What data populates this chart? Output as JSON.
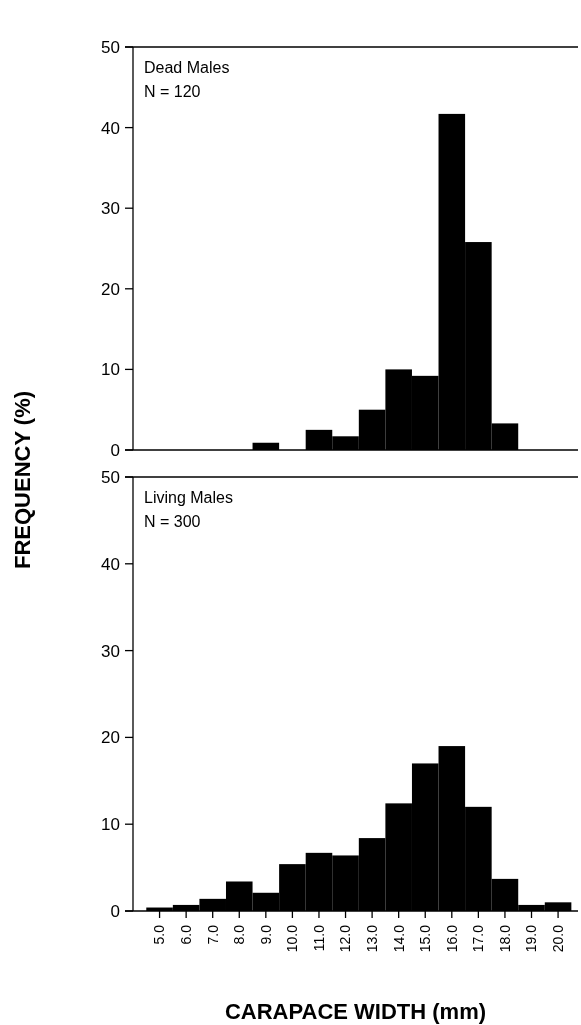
{
  "chart_data": [
    {
      "type": "histogram",
      "annotations": [
        "Dead Males",
        "N = 120"
      ],
      "ylabel": "FREQUENCY (%)",
      "bins": [
        4.5,
        5.5,
        6.5,
        7.5,
        8.5,
        9.5,
        10.5,
        11.5,
        12.5,
        13.5,
        14.5,
        15.5,
        16.5,
        17.5,
        18.5,
        19.5,
        20.5
      ],
      "values": [
        0,
        0,
        0,
        0,
        0.9,
        0,
        2.5,
        1.7,
        5.0,
        10.0,
        9.2,
        41.7,
        25.8,
        3.3,
        0,
        0
      ],
      "color": "#000000",
      "xlim": [
        4,
        20.75
      ],
      "ylim": [
        0,
        50
      ],
      "yticks": [
        0,
        10,
        20,
        30,
        40,
        50
      ],
      "tick_labels": "y"
    },
    {
      "type": "histogram",
      "annotations": [
        "Living Males",
        "N = 300"
      ],
      "xlabel": "CARAPACE WIDTH (mm)",
      "bins": [
        4.5,
        5.5,
        6.5,
        7.5,
        8.5,
        9.5,
        10.5,
        11.5,
        12.5,
        13.5,
        14.5,
        15.5,
        16.5,
        17.5,
        18.5,
        19.5,
        20.5
      ],
      "values": [
        0.4,
        0.7,
        1.4,
        3.4,
        2.1,
        5.4,
        6.7,
        6.4,
        8.4,
        12.4,
        17.0,
        19.0,
        12.0,
        3.7,
        0.7,
        1.0
      ],
      "color": "#000000",
      "xlim": [
        4,
        20.75
      ],
      "ylim": [
        0,
        50
      ],
      "yticks": [
        0,
        10,
        20,
        30,
        40,
        50
      ],
      "xticks": [
        {
          "value": 5,
          "label": "5.0"
        },
        {
          "value": 6,
          "label": "6.0"
        },
        {
          "value": 7,
          "label": "7.0"
        },
        {
          "value": 8,
          "label": "8.0"
        },
        {
          "value": 9,
          "label": "9.0"
        },
        {
          "value": 10,
          "label": "10.0"
        },
        {
          "value": 11,
          "label": "11.0"
        },
        {
          "value": 12,
          "label": "12.0"
        },
        {
          "value": 13,
          "label": "13.0"
        },
        {
          "value": 14,
          "label": "14.0"
        },
        {
          "value": 15,
          "label": "15.0"
        },
        {
          "value": 16,
          "label": "16.0"
        },
        {
          "value": 17,
          "label": "17.0"
        },
        {
          "value": 18,
          "label": "18.0"
        },
        {
          "value": 19,
          "label": "19.0"
        },
        {
          "value": 20,
          "label": "20.0"
        }
      ]
    }
  ]
}
